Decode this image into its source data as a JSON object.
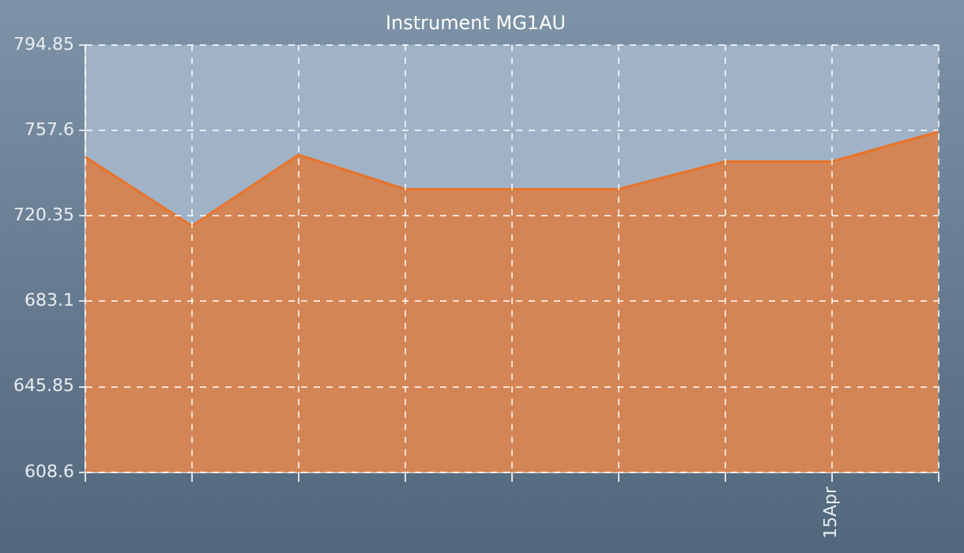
{
  "chart_data": {
    "type": "area",
    "title": "Instrument MG1AU",
    "categories": [
      null,
      null,
      null,
      null,
      null,
      null,
      null,
      "15Apr",
      null
    ],
    "values": [
      746,
      716,
      747,
      732,
      732,
      732,
      744,
      744,
      757
    ],
    "color": "#e8732a",
    "ylim": [
      608.6,
      794.85
    ],
    "yticks": [
      608.6,
      645.85,
      683.1,
      720.35,
      757.6,
      794.85
    ],
    "grid": true
  }
}
